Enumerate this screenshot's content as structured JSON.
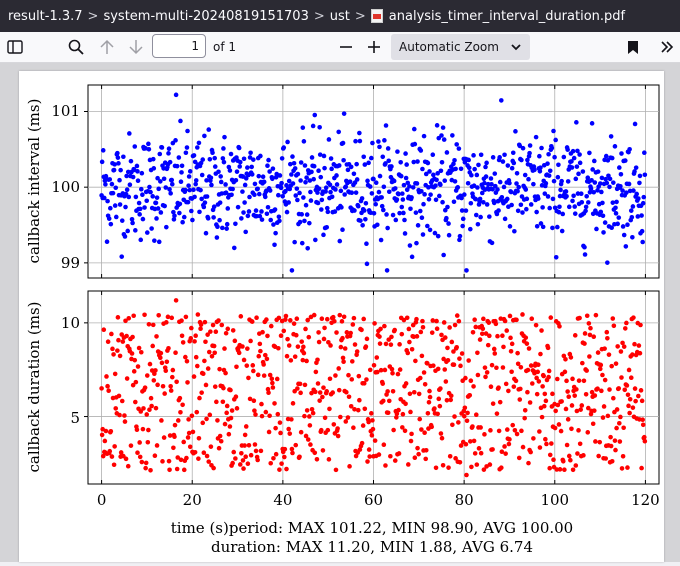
{
  "breadcrumb": {
    "items": [
      "result-1.3.7",
      "system-multi-20240819151703",
      "ust",
      "analysis_timer_interval_duration.pdf"
    ],
    "separator": ">"
  },
  "toolbar": {
    "page_number": "1",
    "page_count": "of 1",
    "zoom": "Automatic Zoom"
  },
  "colors": {
    "interval": "#0000ff",
    "duration": "#ff0000"
  },
  "chart_data": [
    {
      "type": "scatter",
      "ylabel": "callback interval (ms)",
      "xlim": [
        -3,
        123
      ],
      "ylim": [
        98.8,
        101.35
      ],
      "yticks": [
        "99",
        "100",
        "101"
      ],
      "grid": true,
      "series": [
        {
          "points": 1000,
          "y_center": 100.0,
          "y_spread": 0.35,
          "y_range": [
            98.9,
            101.22
          ]
        }
      ]
    },
    {
      "type": "scatter",
      "ylabel": "callback duration (ms)",
      "xlim": [
        -3,
        123
      ],
      "ylim": [
        1.4,
        11.7
      ],
      "yticks": [
        "5",
        "10"
      ],
      "grid": true,
      "series": [
        {
          "points": 1000,
          "y_range": [
            1.88,
            11.2
          ]
        }
      ]
    }
  ],
  "xaxis": {
    "ticks": [
      "0",
      "20",
      "40",
      "60",
      "80",
      "100",
      "120"
    ],
    "label": "time (s)"
  },
  "summary": {
    "period": "period: MAX 101.22, MIN 98.90, AVG 100.00",
    "duration": "duration: MAX 11.20, MIN 1.88, AVG 6.74"
  }
}
